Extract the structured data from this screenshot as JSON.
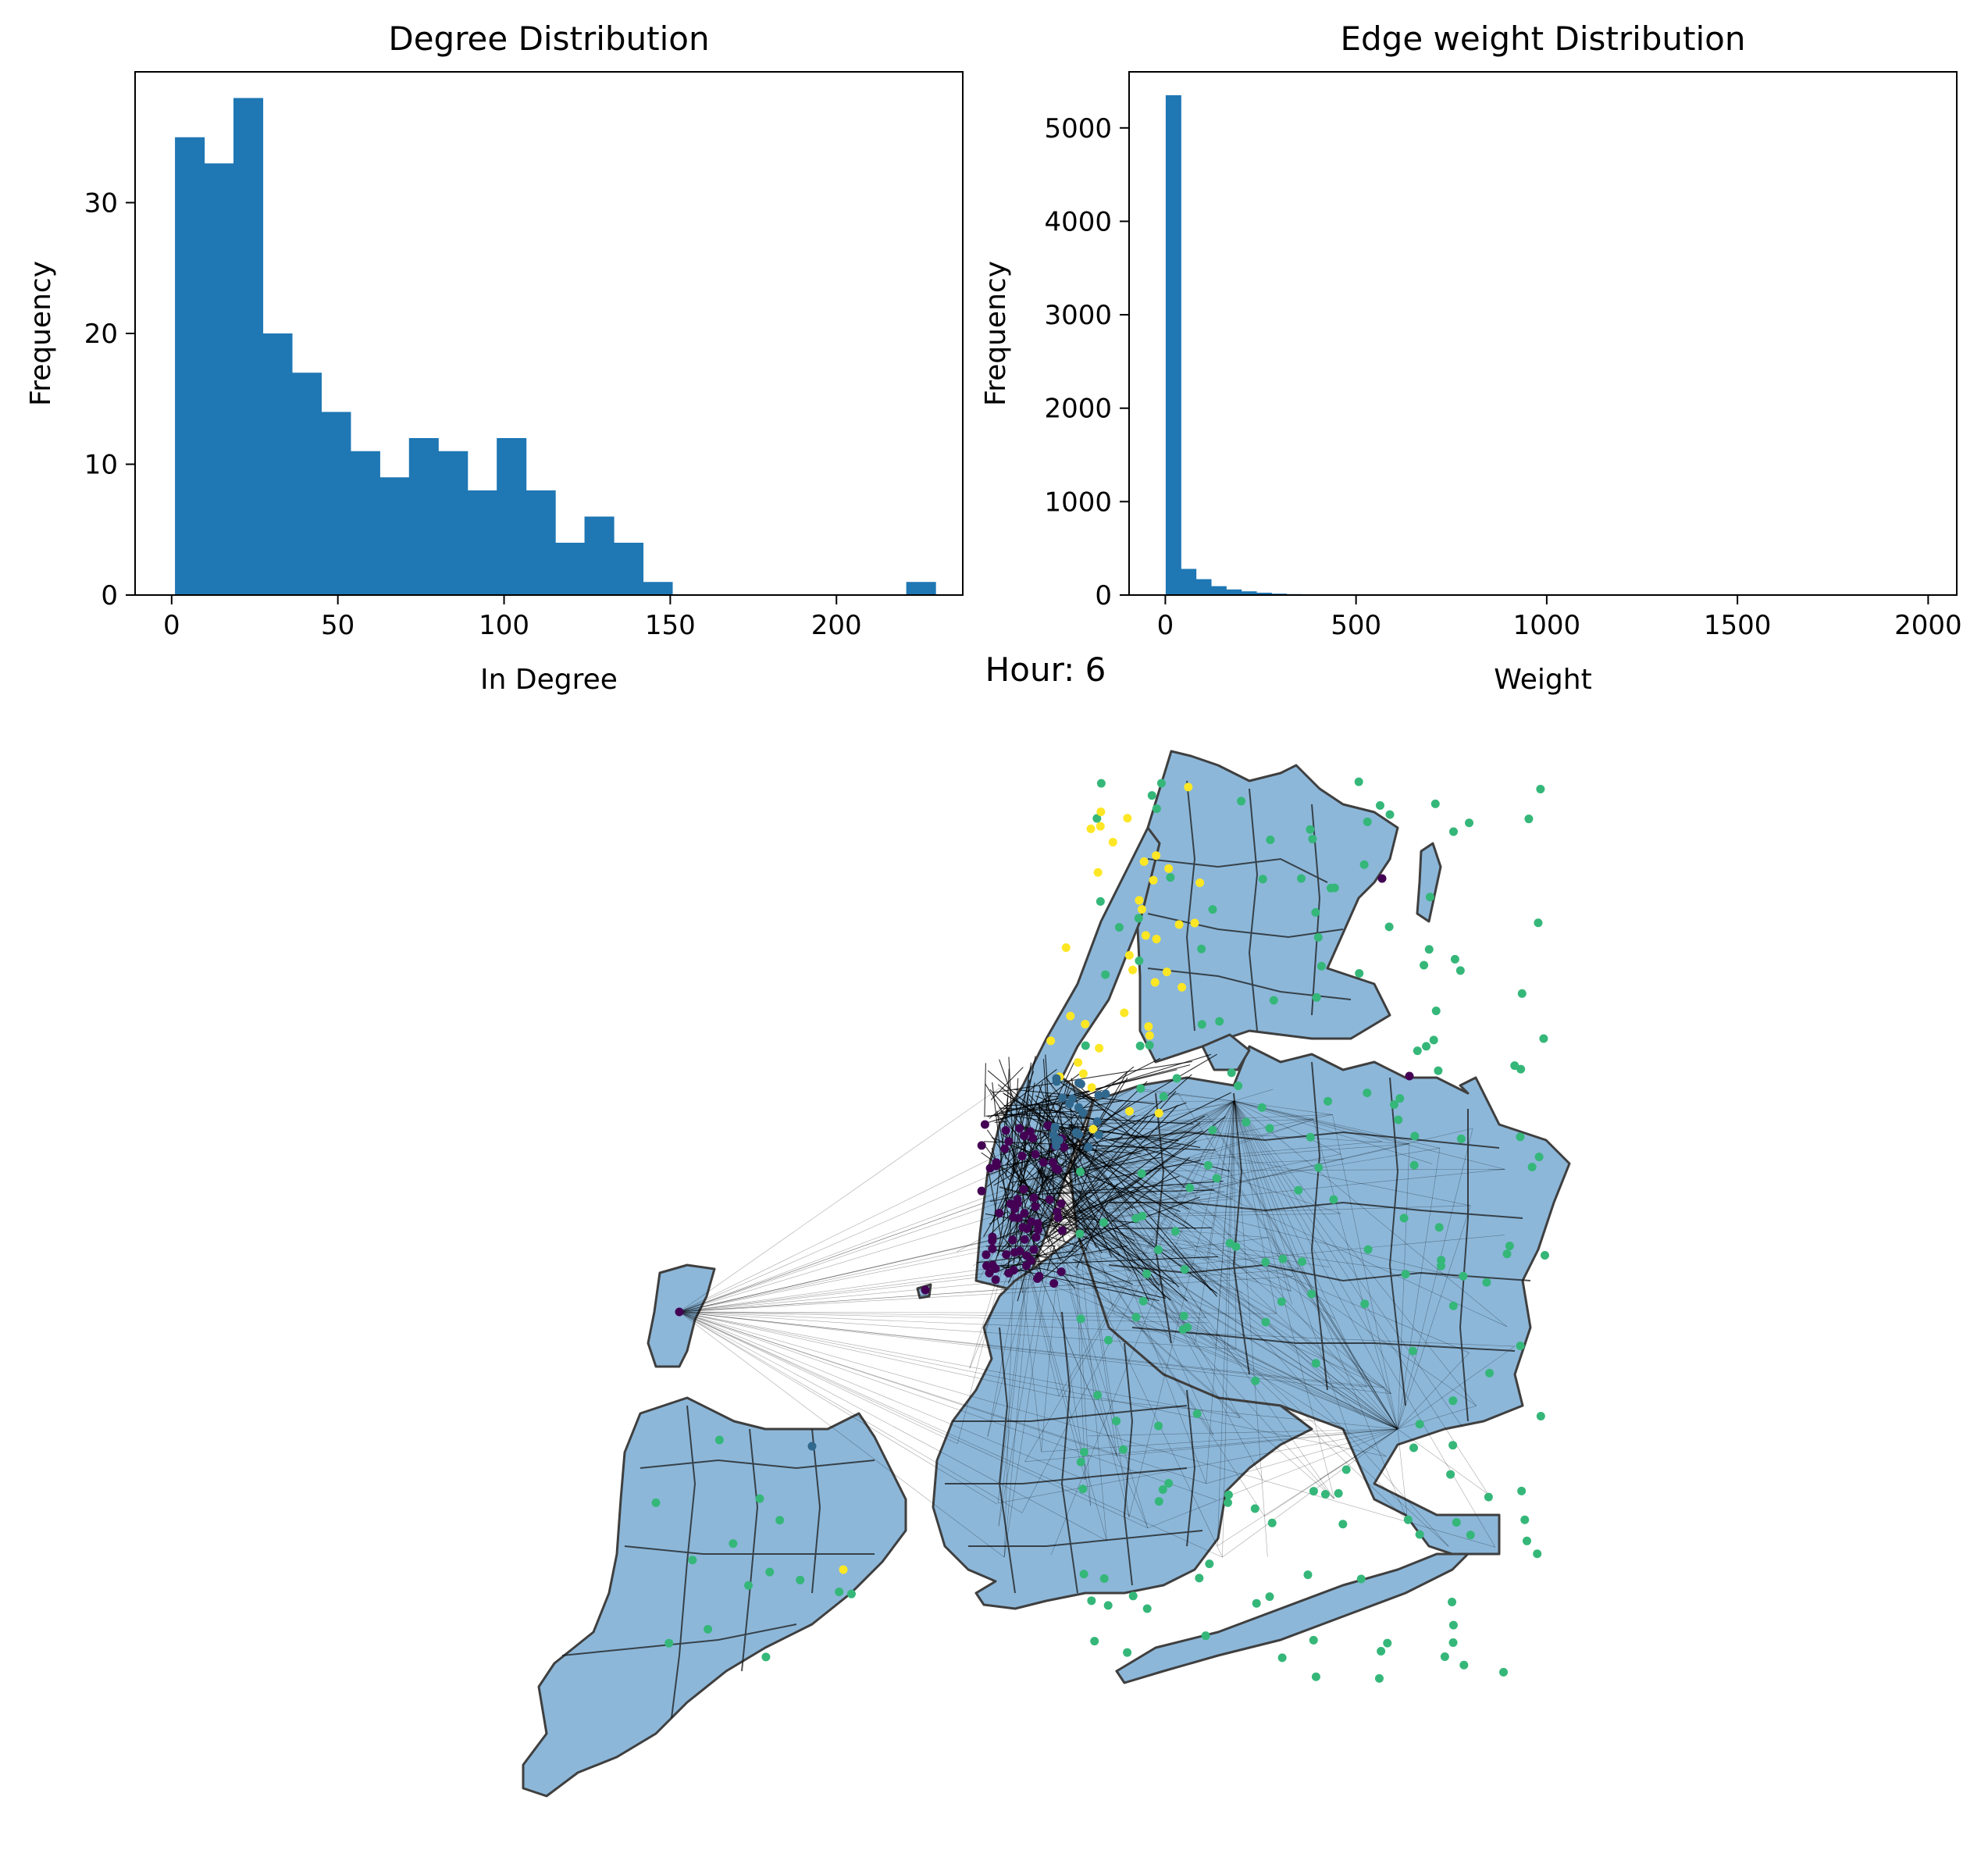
{
  "figure_title": "Hour: 6",
  "chart_data": [
    {
      "type": "bar",
      "title": "Degree Distribution",
      "xlabel": "In Degree",
      "ylabel": "Frequency",
      "xlim": [
        -11,
        238
      ],
      "ylim": [
        0,
        40
      ],
      "xticks": [
        0,
        50,
        100,
        150,
        200
      ],
      "yticks": [
        0,
        10,
        20,
        30
      ],
      "color": "#1f77b4",
      "bin_edges": [
        1,
        9.8,
        18.6,
        27.4,
        36.2,
        45,
        53.8,
        62.6,
        71.4,
        80.2,
        89,
        97.8,
        106.6,
        115.4,
        124.2,
        133,
        141.8,
        150.6,
        159.4,
        168.2,
        177,
        185.8,
        194.6,
        203.4,
        212.2,
        221,
        229.8
      ],
      "values": [
        35,
        33,
        38,
        20,
        17,
        14,
        11,
        9,
        12,
        11,
        8,
        12,
        8,
        4,
        6,
        4,
        1,
        0,
        0,
        0,
        0,
        0,
        0,
        0,
        0,
        1
      ]
    },
    {
      "type": "bar",
      "title": "Edge weight Distribution",
      "xlabel": "Weight",
      "ylabel": "Frequency",
      "xlim": [
        -95,
        2075
      ],
      "ylim": [
        0,
        5600
      ],
      "xticks": [
        0,
        500,
        1000,
        1500,
        2000
      ],
      "yticks": [
        0,
        1000,
        2000,
        3000,
        4000,
        5000
      ],
      "color": "#1f77b4",
      "bin_start": 1,
      "bin_width": 39.6,
      "values": [
        5350,
        280,
        170,
        95,
        60,
        40,
        25,
        15,
        10,
        6,
        4,
        3,
        2,
        2,
        1,
        1,
        1,
        1,
        1,
        0,
        1,
        0,
        0,
        0,
        1,
        0,
        0,
        0,
        0,
        0,
        0,
        0,
        0,
        0,
        0,
        0,
        0,
        0,
        0,
        0,
        0,
        0,
        0,
        0,
        0,
        0,
        0,
        0,
        0,
        1
      ]
    }
  ],
  "map": {
    "fill_color": "#8ab6d9",
    "edge_color": "#3c3c3c",
    "node_colors": [
      "#440154",
      "#31688e",
      "#35b779",
      "#fde725"
    ]
  }
}
